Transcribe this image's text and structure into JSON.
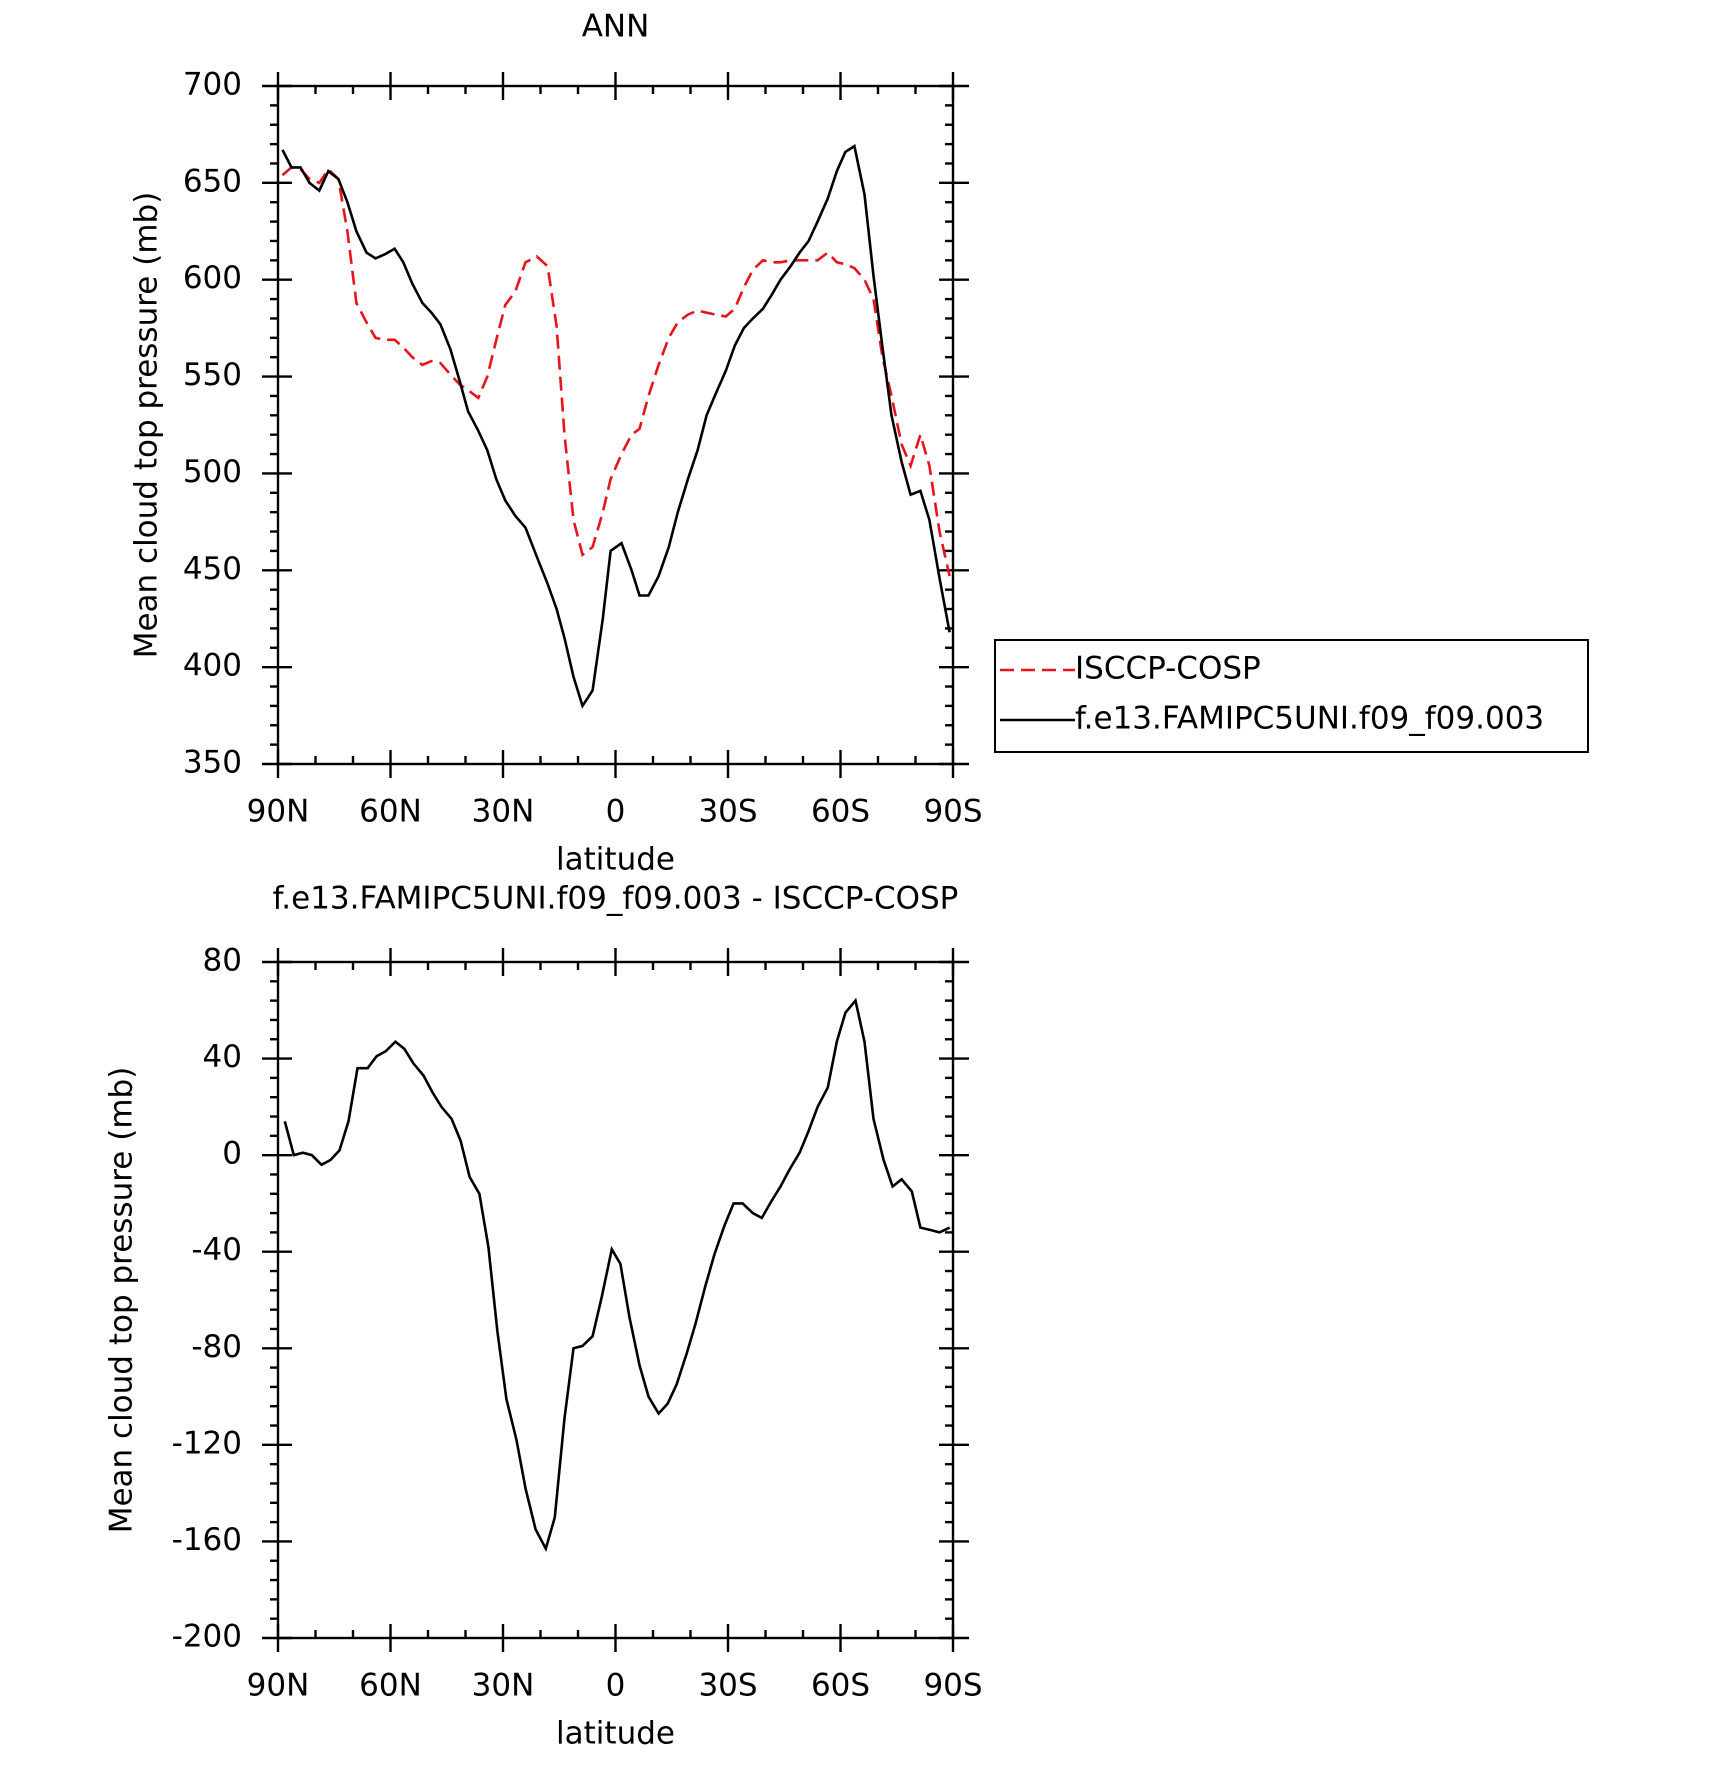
{
  "chart_data": [
    {
      "type": "line",
      "title": "ANN",
      "xlabel": "latitude",
      "ylabel": "Mean cloud top pressure (mb)",
      "xlim": [
        90,
        -90
      ],
      "ylim": [
        350,
        700
      ],
      "xticks": [
        {
          "value": 90,
          "label": "90N"
        },
        {
          "value": 60,
          "label": "60N"
        },
        {
          "value": 30,
          "label": "30N"
        },
        0,
        {
          "value": -30,
          "label": "30S"
        },
        {
          "value": -60,
          "label": "60S"
        },
        {
          "value": -90,
          "label": "90S"
        }
      ],
      "yticks": [
        350,
        400,
        450,
        500,
        550,
        600,
        650,
        700
      ],
      "x": [
        88.8,
        86.4,
        84.0,
        81.6,
        79.0,
        76.6,
        73.9,
        71.5,
        69.1,
        66.4,
        64.0,
        61.6,
        58.9,
        56.6,
        54.2,
        51.5,
        49.1,
        46.7,
        44.0,
        41.6,
        39.3,
        36.6,
        34.2,
        31.8,
        29.4,
        26.7,
        24.0,
        21.0,
        18.1,
        15.7,
        13.6,
        11.2,
        8.8,
        6.1,
        3.4,
        1.3,
        -1.6,
        -4.3,
        -6.4,
        -8.8,
        -11.5,
        -14.2,
        -16.6,
        -19.3,
        -21.9,
        -24.3,
        -26.7,
        -29.4,
        -31.8,
        -34.2,
        -36.6,
        -39.3,
        -41.6,
        -44.0,
        -46.7,
        -49.1,
        -51.5,
        -53.9,
        -56.6,
        -59.0,
        -61.3,
        -63.7,
        -66.4,
        -68.8,
        -71.2,
        -73.6,
        -76.3,
        -78.7,
        -81.3,
        -83.7,
        -86.4,
        -89.1
      ],
      "series": [
        {
          "name": "ISCCP-COSP",
          "color": "#e8141b",
          "linestyle": "dashed",
          "values": [
            654,
            658,
            657,
            652,
            650,
            657,
            652,
            625,
            588,
            578,
            570,
            569,
            569,
            565,
            560,
            556,
            558,
            557,
            551,
            546,
            543,
            539,
            550,
            569,
            587,
            594,
            609,
            612,
            607,
            576,
            520,
            476,
            458,
            462,
            480,
            497,
            510,
            520,
            523,
            540,
            556,
            570,
            578,
            582,
            584,
            583,
            582,
            581,
            585,
            596,
            605,
            610,
            609,
            609,
            610,
            610,
            610,
            610,
            614,
            609,
            608,
            606,
            600,
            590,
            560,
            540,
            515,
            504,
            520,
            504,
            470,
            447
          ]
        },
        {
          "name": "f.e13.FAMIPC5UNI.f09_f09.003",
          "color": "#000000",
          "linestyle": "solid",
          "values": [
            667,
            658,
            658,
            650,
            646,
            656,
            652,
            640,
            625,
            614,
            611,
            613,
            616,
            609,
            598,
            588,
            583,
            577,
            564,
            548,
            532,
            522,
            512,
            497,
            486,
            478,
            472,
            457,
            443,
            430,
            415,
            395,
            380,
            388,
            425,
            460,
            464,
            450,
            437,
            437,
            447,
            462,
            480,
            497,
            512,
            530,
            541,
            553,
            566,
            575,
            580,
            585,
            592,
            600,
            607,
            614,
            620,
            630,
            642,
            656,
            666,
            669,
            644,
            602,
            565,
            530,
            506,
            489,
            491,
            476,
            446,
            418
          ]
        }
      ],
      "legend": "right"
    },
    {
      "type": "line",
      "title": "f.e13.FAMIPC5UNI.f09_f09.003 - ISCCP-COSP",
      "xlabel": "latitude",
      "ylabel": "Mean cloud top pressure (mb)",
      "xlim": [
        90,
        -90
      ],
      "ylim": [
        -200,
        80
      ],
      "xticks": [
        {
          "value": 90,
          "label": "90N"
        },
        {
          "value": 60,
          "label": "60N"
        },
        {
          "value": 30,
          "label": "30N"
        },
        0,
        {
          "value": -30,
          "label": "30S"
        },
        {
          "value": -60,
          "label": "60S"
        },
        {
          "value": -90,
          "label": "90S"
        }
      ],
      "yticks": [
        -200,
        -160,
        -120,
        -80,
        -40,
        0,
        40,
        80
      ],
      "x": [
        88.2,
        85.8,
        83.4,
        81.0,
        78.4,
        76.0,
        73.6,
        71.2,
        68.8,
        66.1,
        63.7,
        61.3,
        58.7,
        56.3,
        53.9,
        51.2,
        48.8,
        46.4,
        43.7,
        41.3,
        38.9,
        36.3,
        33.9,
        31.5,
        29.1,
        26.4,
        24.0,
        21.3,
        18.6,
        16.2,
        13.6,
        11.2,
        8.8,
        6.1,
        3.7,
        1.0,
        -1.3,
        -3.7,
        -6.4,
        -8.8,
        -11.5,
        -13.9,
        -16.3,
        -19.0,
        -21.3,
        -24.0,
        -26.4,
        -29.1,
        -31.5,
        -33.9,
        -36.6,
        -39.0,
        -41.6,
        -44.0,
        -46.4,
        -49.1,
        -51.5,
        -53.9,
        -56.6,
        -59.0,
        -61.3,
        -64.0,
        -66.4,
        -68.8,
        -71.5,
        -73.9,
        -76.3,
        -79.0,
        -81.3,
        -84.0,
        -86.4,
        -89.1
      ],
      "series": [
        {
          "color": "#000000",
          "linestyle": "solid",
          "values": [
            14,
            0,
            1,
            0,
            -4,
            -2,
            2,
            14,
            36,
            36,
            41,
            43,
            47,
            44,
            38,
            33,
            26,
            20,
            15,
            6,
            -9,
            -16,
            -38,
            -73,
            -101,
            -118,
            -138,
            -155,
            -163,
            -150,
            -109,
            -80,
            -79,
            -75,
            -59,
            -39,
            -45,
            -67,
            -87,
            -100,
            -107,
            -103,
            -95,
            -82,
            -70,
            -54,
            -41,
            -29,
            -20,
            -20,
            -24,
            -26,
            -19,
            -13,
            -6,
            1,
            10,
            20,
            28,
            47,
            59,
            64,
            47,
            15,
            -2,
            -13,
            -10,
            -15,
            -30,
            -31,
            -32,
            -30
          ]
        }
      ]
    }
  ]
}
